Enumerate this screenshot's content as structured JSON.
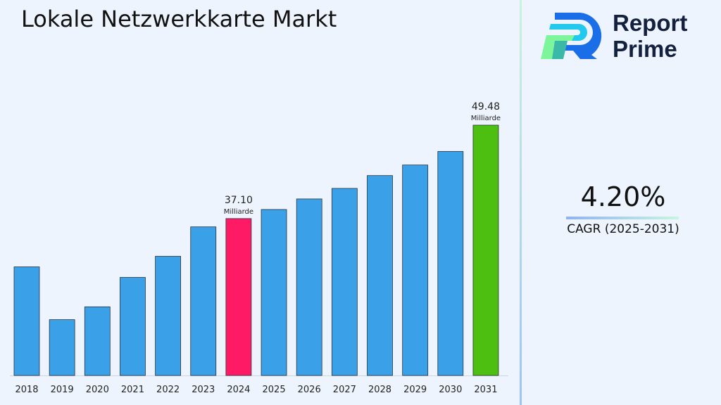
{
  "title": "Lokale Netzwerkkarte Markt",
  "logo": {
    "line1": "Report",
    "line2": "Prime"
  },
  "cagr": {
    "value": "4.20%",
    "label": "CAGR (2025-2031)"
  },
  "chart_data": {
    "type": "bar",
    "title": "Lokale Netzwerkkarte Markt",
    "categories": [
      "2018",
      "2019",
      "2020",
      "2021",
      "2022",
      "2023",
      "2024",
      "2025",
      "2026",
      "2027",
      "2028",
      "2029",
      "2030",
      "2031"
    ],
    "values": [
      30.7,
      23.7,
      25.4,
      29.3,
      32.1,
      36.0,
      37.1,
      38.3,
      39.7,
      41.1,
      42.8,
      44.2,
      46.0,
      49.48
    ],
    "ylim": [
      16.3,
      52
    ],
    "grid": false,
    "colors": {
      "default": "#3aa0e8",
      "highlight_2024": "#fe1a64",
      "highlight_2031": "#4cbf10"
    },
    "annotations": [
      {
        "category": "2024",
        "value": "37.10",
        "unit": "Milliarde"
      },
      {
        "category": "2031",
        "value": "49.48",
        "unit": "Milliarde"
      }
    ]
  }
}
